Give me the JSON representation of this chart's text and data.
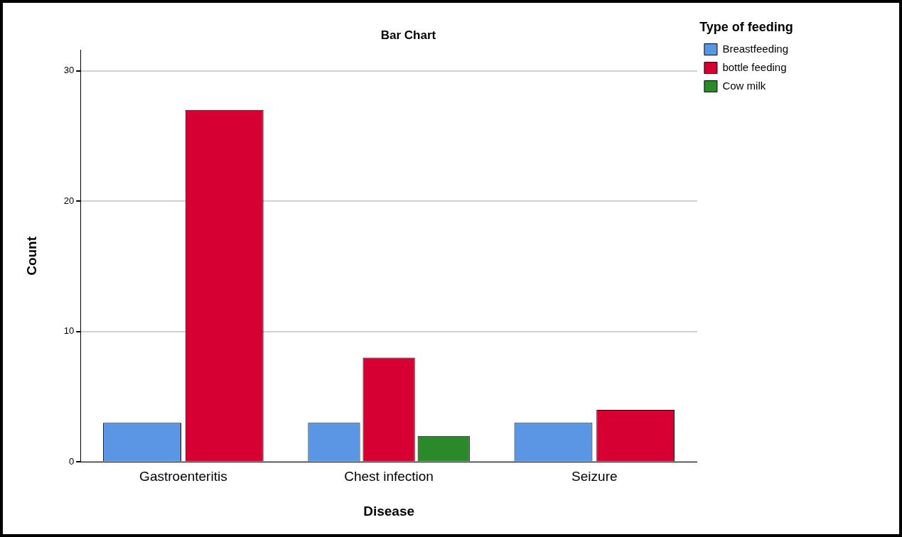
{
  "chart_data": {
    "type": "bar",
    "title": "Bar Chart",
    "xlabel": "Disease",
    "ylabel": "Count",
    "legend_title": "Type of feeding",
    "categories": [
      "Gastroenteritis",
      "Chest infection",
      "Seizure"
    ],
    "series": [
      {
        "name": "Breastfeeding",
        "color": "#5a96e3",
        "values": [
          3,
          3,
          3
        ]
      },
      {
        "name": "bottle feeding",
        "color": "#d60032",
        "values": [
          27,
          8,
          4
        ]
      },
      {
        "name": "Cow milk",
        "color": "#2a8a2a",
        "values": [
          null,
          2,
          null
        ]
      }
    ],
    "ylim": [
      0,
      31.6
    ],
    "yticks": [
      0,
      10,
      20,
      30
    ],
    "grid": "y",
    "legend": "right"
  }
}
